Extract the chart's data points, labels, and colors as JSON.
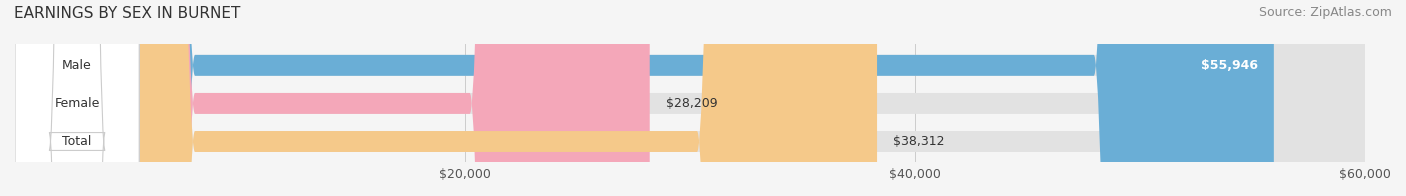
{
  "title": "EARNINGS BY SEX IN BURNET",
  "source": "Source: ZipAtlas.com",
  "categories": [
    "Male",
    "Female",
    "Total"
  ],
  "values": [
    55946,
    28209,
    38312
  ],
  "labels": [
    "$55,946",
    "$28,209",
    "$38,312"
  ],
  "bar_colors": [
    "#6aaed6",
    "#f4a7b9",
    "#f5c98a"
  ],
  "background_color": "#f5f5f5",
  "bar_bg_color": "#e2e2e2",
  "xlim": [
    0,
    60000
  ],
  "xticks": [
    20000,
    40000,
    60000
  ],
  "xticklabels": [
    "$20,000",
    "$40,000",
    "$60,000"
  ],
  "title_fontsize": 11,
  "source_fontsize": 9,
  "tick_fontsize": 9,
  "label_fontsize": 9,
  "category_fontsize": 9,
  "bar_height": 0.55
}
